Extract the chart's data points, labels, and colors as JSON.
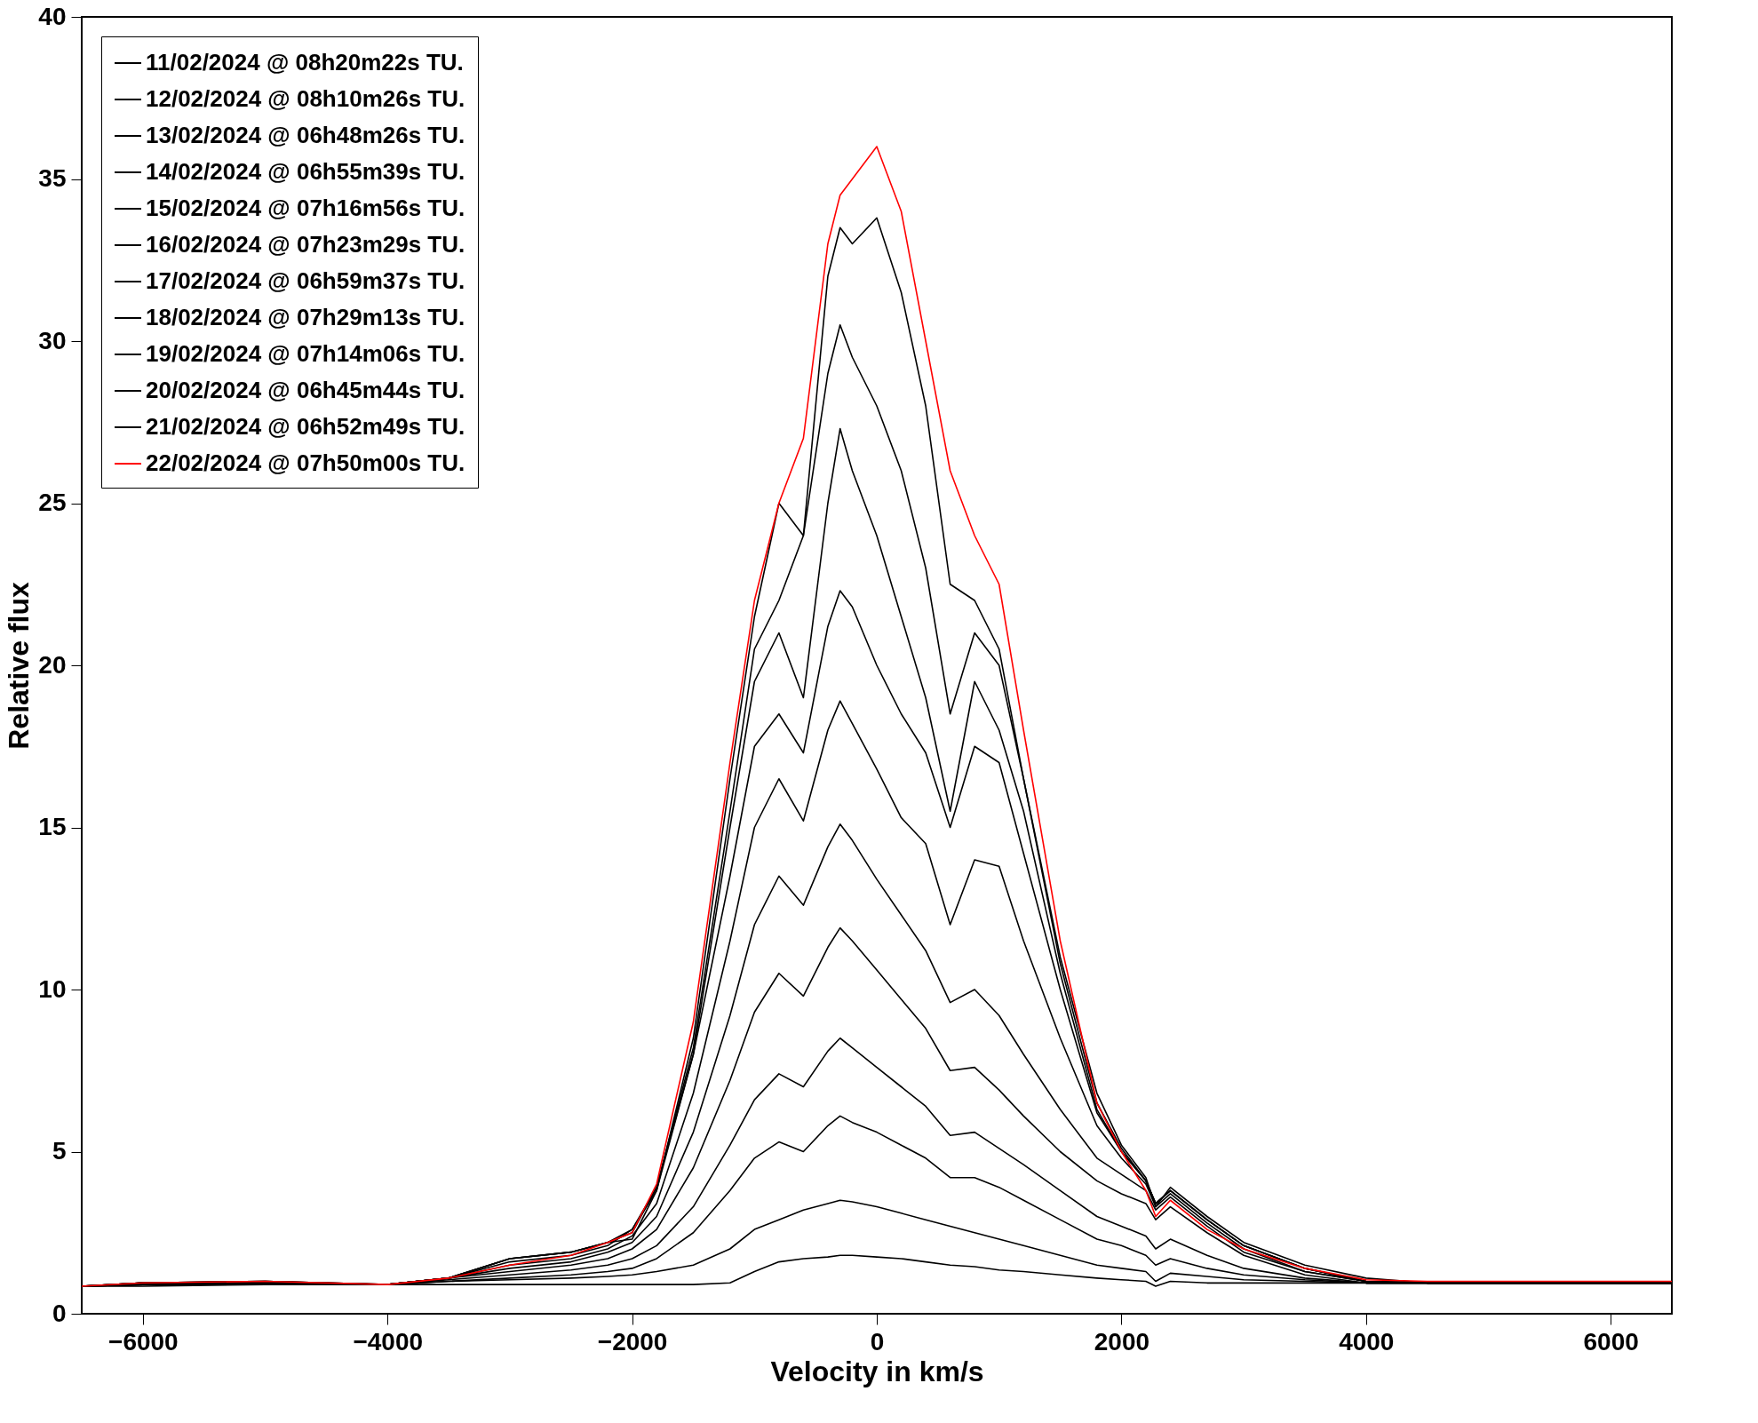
{
  "chart_data": {
    "type": "line",
    "xlabel": "Velocity in km/s",
    "ylabel": "Relative flux",
    "xlim": [
      -6500,
      6500
    ],
    "ylim": [
      0,
      40
    ],
    "xticks": [
      -6000,
      -4000,
      -2000,
      0,
      2000,
      4000,
      6000
    ],
    "yticks": [
      0,
      5,
      10,
      15,
      20,
      25,
      30,
      35,
      40
    ],
    "grid": false,
    "legend": "top left",
    "marker": "none",
    "line_style": "solid",
    "x": [
      -6500,
      -6000,
      -5000,
      -4000,
      -3500,
      -3000,
      -2500,
      -2200,
      -2000,
      -1800,
      -1500,
      -1200,
      -1000,
      -800,
      -600,
      -400,
      -300,
      -200,
      0,
      200,
      400,
      600,
      800,
      1000,
      1200,
      1500,
      1800,
      2000,
      2200,
      2280,
      2400,
      2700,
      3000,
      3500,
      4000,
      4500,
      5000,
      6000,
      6500
    ],
    "series": [
      {
        "name": "11/02/2024 @ 08h20m22s TU.",
        "color": "#000000",
        "values": [
          0.85,
          0.85,
          0.9,
          0.9,
          0.9,
          0.9,
          0.9,
          0.9,
          0.9,
          0.9,
          0.9,
          0.95,
          1.3,
          1.6,
          1.7,
          1.75,
          1.8,
          1.8,
          1.75,
          1.7,
          1.6,
          1.5,
          1.45,
          1.35,
          1.3,
          1.2,
          1.1,
          1.05,
          1.0,
          0.85,
          1.0,
          0.95,
          0.95,
          0.95,
          0.95,
          0.95,
          0.95,
          0.95,
          0.95
        ]
      },
      {
        "name": "12/02/2024 @ 08h10m26s TU.",
        "color": "#000000",
        "values": [
          0.85,
          0.9,
          0.9,
          0.9,
          1.0,
          1.05,
          1.1,
          1.15,
          1.2,
          1.3,
          1.5,
          2.0,
          2.6,
          2.9,
          3.2,
          3.4,
          3.5,
          3.45,
          3.3,
          3.1,
          2.9,
          2.7,
          2.5,
          2.3,
          2.1,
          1.8,
          1.5,
          1.4,
          1.3,
          1.0,
          1.25,
          1.15,
          1.05,
          1.0,
          0.95,
          0.95,
          0.95,
          0.95,
          0.95
        ]
      },
      {
        "name": "13/02/2024 @ 06h48m26s TU.",
        "color": "#000000",
        "values": [
          0.85,
          0.9,
          0.9,
          0.9,
          1.0,
          1.1,
          1.2,
          1.3,
          1.4,
          1.7,
          2.5,
          3.8,
          4.8,
          5.3,
          5.0,
          5.8,
          6.1,
          5.9,
          5.6,
          5.2,
          4.8,
          4.2,
          4.2,
          3.9,
          3.5,
          2.9,
          2.3,
          2.1,
          1.8,
          1.5,
          1.7,
          1.4,
          1.2,
          1.05,
          0.95,
          0.95,
          0.95,
          0.95,
          0.95
        ]
      },
      {
        "name": "14/02/2024 @ 06h55m39s TU.",
        "color": "#000000",
        "values": [
          0.85,
          0.9,
          0.95,
          0.9,
          1.05,
          1.2,
          1.35,
          1.5,
          1.7,
          2.1,
          3.3,
          5.2,
          6.6,
          7.4,
          7.0,
          8.1,
          8.5,
          8.2,
          7.6,
          7.0,
          6.4,
          5.5,
          5.6,
          5.1,
          4.6,
          3.8,
          3.0,
          2.7,
          2.4,
          2.0,
          2.3,
          1.8,
          1.4,
          1.1,
          0.95,
          0.95,
          0.95,
          0.95,
          0.95
        ]
      },
      {
        "name": "15/02/2024 @ 07h16m56s TU.",
        "color": "#000000",
        "values": [
          0.85,
          0.9,
          0.95,
          0.9,
          1.1,
          1.3,
          1.5,
          1.7,
          2.0,
          2.6,
          4.5,
          7.2,
          9.3,
          10.5,
          9.8,
          11.3,
          11.9,
          11.5,
          10.6,
          9.7,
          8.8,
          7.5,
          7.6,
          6.9,
          6.1,
          5.0,
          4.1,
          3.7,
          3.4,
          2.9,
          3.3,
          2.5,
          1.8,
          1.2,
          0.95,
          0.95,
          0.95,
          0.95,
          0.95
        ]
      },
      {
        "name": "16/02/2024 @ 07h23m29s TU.",
        "color": "#000000",
        "values": [
          0.85,
          0.95,
          0.95,
          0.9,
          1.1,
          1.4,
          1.6,
          1.9,
          2.2,
          3.0,
          5.6,
          9.2,
          12.0,
          13.5,
          12.6,
          14.4,
          15.1,
          14.6,
          13.4,
          12.3,
          11.2,
          9.6,
          10.0,
          9.2,
          8.0,
          6.3,
          4.8,
          4.3,
          3.8,
          3.2,
          3.6,
          2.7,
          1.9,
          1.3,
          1.0,
          0.95,
          0.95,
          0.95,
          0.95
        ]
      },
      {
        "name": "17/02/2024 @ 06h59m37s TU.",
        "color": "#000000",
        "values": [
          0.85,
          0.95,
          0.95,
          0.9,
          1.1,
          1.5,
          1.7,
          2.0,
          2.4,
          3.4,
          6.8,
          11.5,
          15.0,
          16.5,
          15.2,
          18.0,
          18.9,
          18.2,
          16.8,
          15.3,
          14.5,
          12.0,
          14.0,
          13.8,
          11.5,
          8.5,
          5.8,
          4.8,
          4.0,
          3.3,
          3.7,
          2.8,
          2.0,
          1.3,
          1.0,
          0.95,
          0.95,
          0.95,
          0.95
        ]
      },
      {
        "name": "18/02/2024 @ 07h29m13s TU.",
        "color": "#000000",
        "values": [
          0.85,
          0.95,
          0.95,
          0.9,
          1.1,
          1.6,
          1.8,
          2.1,
          2.6,
          3.8,
          8.0,
          13.5,
          17.5,
          18.5,
          17.3,
          21.2,
          22.3,
          21.8,
          20.0,
          18.5,
          17.3,
          15.0,
          17.5,
          17.0,
          14.2,
          10.0,
          6.2,
          5.0,
          4.1,
          3.4,
          3.8,
          2.9,
          2.1,
          1.4,
          1.0,
          0.95,
          0.95,
          0.95,
          0.95
        ]
      },
      {
        "name": "19/02/2024 @ 07h14m06s TU.",
        "color": "#000000",
        "values": [
          0.85,
          0.95,
          1.0,
          0.9,
          1.1,
          1.7,
          1.9,
          2.2,
          2.6,
          3.9,
          8.0,
          15.0,
          19.5,
          21.0,
          19.0,
          25.0,
          27.3,
          26.0,
          24.0,
          21.5,
          19.0,
          15.5,
          19.5,
          18.0,
          15.5,
          10.5,
          6.3,
          5.0,
          4.1,
          3.4,
          3.8,
          2.9,
          2.1,
          1.4,
          1.0,
          0.95,
          0.95,
          0.95,
          0.95
        ]
      },
      {
        "name": "20/02/2024 @ 06h45m44s TU.",
        "color": "#000000",
        "values": [
          0.85,
          0.95,
          1.0,
          0.9,
          1.1,
          1.7,
          1.9,
          2.2,
          2.5,
          3.9,
          8.2,
          15.5,
          20.5,
          22.0,
          24.0,
          29.0,
          30.5,
          29.5,
          28.0,
          26.0,
          23.0,
          18.5,
          21.0,
          20.0,
          16.5,
          10.8,
          6.5,
          5.1,
          4.1,
          3.4,
          3.8,
          2.9,
          2.1,
          1.4,
          1.0,
          0.95,
          0.95,
          0.95,
          0.95
        ]
      },
      {
        "name": "21/02/2024 @ 06h52m49s TU.",
        "color": "#000000",
        "values": [
          0.85,
          0.95,
          1.0,
          0.9,
          1.1,
          1.7,
          1.9,
          2.2,
          2.3,
          3.8,
          8.5,
          16.5,
          21.5,
          25.0,
          24.0,
          32.0,
          33.5,
          33.0,
          33.8,
          31.5,
          28.0,
          22.5,
          22.0,
          20.5,
          16.5,
          11.0,
          6.8,
          5.2,
          4.2,
          3.3,
          3.9,
          3.0,
          2.2,
          1.5,
          1.1,
          0.95,
          0.95,
          0.95,
          0.95
        ]
      },
      {
        "name": "22/02/2024 @ 07h50m00s TU.",
        "color": "#ff0000",
        "values": [
          0.85,
          0.95,
          1.0,
          0.9,
          1.1,
          1.5,
          1.8,
          2.2,
          2.5,
          4.0,
          9.0,
          17.0,
          22.0,
          25.0,
          27.0,
          33.0,
          34.5,
          35.0,
          36.0,
          34.0,
          30.0,
          26.0,
          24.0,
          22.5,
          18.0,
          11.5,
          6.5,
          5.0,
          3.8,
          3.0,
          3.5,
          2.6,
          2.0,
          1.4,
          1.05,
          1.0,
          1.0,
          1.0,
          1.0
        ]
      }
    ]
  }
}
